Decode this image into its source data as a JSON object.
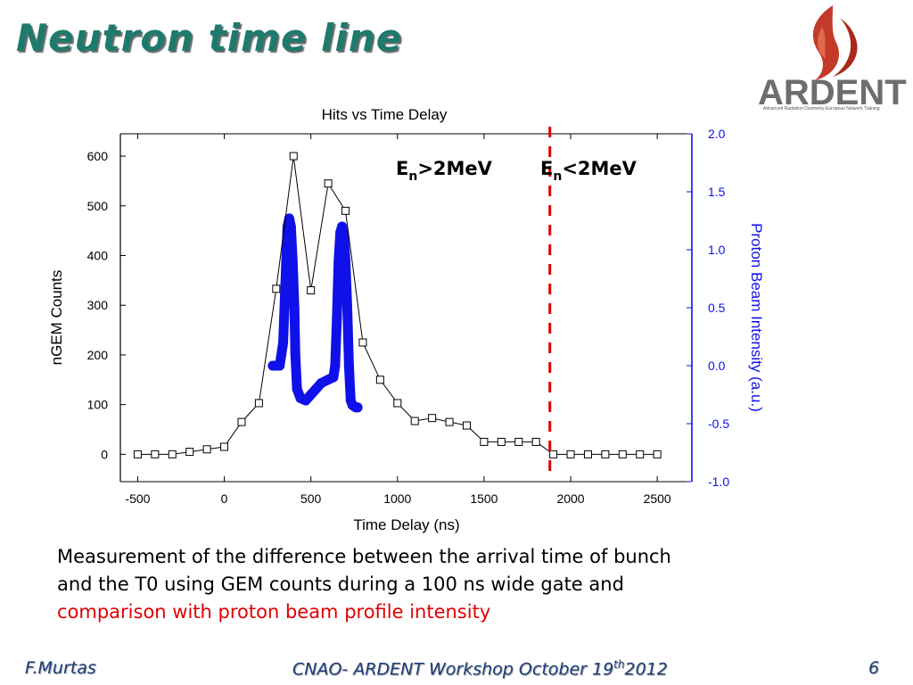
{
  "slide": {
    "title": "Neutron time line",
    "logo_text": "ARDENT",
    "logo_tagline": "Advanced Radiation Dosimetry European Network Training",
    "caption_line1": "Measurement of the difference between the arrival time of bunch",
    "caption_line2": "and the T0 using GEM counts during a 100 ns wide gate and",
    "caption_line3_red": "comparison with proton beam profile intensity",
    "footer_left": "F.Murtas",
    "footer_center_a": "CNAO- ARDENT Workshop October 19",
    "footer_center_sup": "th",
    "footer_center_b": "2012",
    "footer_right": "6"
  },
  "colors": {
    "title": "#1e7a6c",
    "proton_series": "#1010e8",
    "threshold_line": "#e00000",
    "footer": "#1d3d7a"
  },
  "chart_data": {
    "type": "line",
    "title": "Hits vs Time Delay",
    "xlabel": "Time Delay (ns)",
    "ylabel": "nGEM Counts",
    "y2label": "Proton Beam Intensity (a.u.)",
    "xlim": [
      -600,
      2700
    ],
    "ylim": [
      -55,
      645
    ],
    "y2lim": [
      -1.0,
      2.0
    ],
    "x_ticks": [
      -500,
      0,
      500,
      1000,
      1500,
      2000,
      2500
    ],
    "y_ticks": [
      0,
      100,
      200,
      300,
      400,
      500,
      600
    ],
    "y2_ticks": [
      "-1.0",
      "-0.5",
      "0.0",
      "0.5",
      "1.0",
      "1.5",
      "2.0"
    ],
    "series": [
      {
        "name": "nGEM Counts",
        "axis": "left",
        "x": [
          -500,
          -400,
          -300,
          -200,
          -100,
          0,
          100,
          200,
          300,
          400,
          500,
          600,
          700,
          800,
          900,
          1000,
          1100,
          1200,
          1300,
          1400,
          1500,
          1600,
          1700,
          1800,
          1900,
          2000,
          2100,
          2200,
          2300,
          2400,
          2500
        ],
        "values": [
          0,
          0,
          0,
          5,
          10,
          15,
          65,
          103,
          333,
          600,
          330,
          545,
          490,
          225,
          150,
          103,
          67,
          73,
          65,
          58,
          25,
          25,
          25,
          25,
          0,
          0,
          0,
          0,
          0,
          0,
          0
        ]
      },
      {
        "name": "Proton Beam Intensity",
        "axis": "right",
        "x": [
          280,
          300,
          320,
          340,
          355,
          365,
          375,
          385,
          395,
          405,
          410,
          420,
          440,
          470,
          500,
          530,
          560,
          600,
          630,
          640,
          650,
          660,
          670,
          680,
          690,
          700,
          710,
          720,
          730,
          740,
          750,
          760,
          770
        ],
        "values": [
          0.0,
          0.0,
          0.0,
          0.2,
          0.8,
          1.2,
          1.27,
          1.2,
          0.9,
          0.5,
          0.1,
          -0.2,
          -0.28,
          -0.3,
          -0.25,
          -0.2,
          -0.15,
          -0.12,
          -0.1,
          0.0,
          0.4,
          0.9,
          1.15,
          1.2,
          1.12,
          0.9,
          0.5,
          0.0,
          -0.3,
          -0.34,
          -0.35,
          -0.36,
          -0.36
        ]
      }
    ],
    "threshold": {
      "x": 1880,
      "style": "dashed"
    },
    "annotations": [
      {
        "text_main": "E",
        "text_sub": "n",
        "text_tail": ">2MeV"
      },
      {
        "text_main": "E",
        "text_sub": "n",
        "text_tail": "<2MeV"
      }
    ]
  }
}
